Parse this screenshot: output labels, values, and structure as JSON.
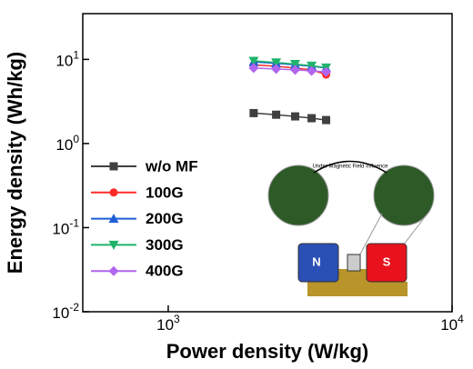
{
  "chart_data": {
    "type": "line",
    "log_x": true,
    "log_y": true,
    "x_label": "Power density (W/kg)",
    "y_label": "Energy density (Wh/kg)",
    "x": [
      2000,
      2400,
      2800,
      3200,
      3600
    ],
    "series": [
      {
        "name": "w/o MF",
        "color": "#404040",
        "marker": "square",
        "values": [
          2.3,
          2.2,
          2.1,
          2.0,
          1.9
        ]
      },
      {
        "name": "100G",
        "color": "#ff2b2b",
        "marker": "circle",
        "values": [
          8.6,
          8.3,
          7.9,
          7.5,
          6.6
        ]
      },
      {
        "name": "200G",
        "color": "#1f5fd6",
        "marker": "triangle-up",
        "values": [
          9.3,
          9.0,
          8.6,
          8.3,
          7.9
        ]
      },
      {
        "name": "300G",
        "color": "#1fb36b",
        "marker": "triangle-down",
        "values": [
          9.6,
          9.2,
          8.8,
          8.4,
          8.0
        ]
      },
      {
        "name": "400G",
        "color": "#b066ee",
        "marker": "diamond",
        "values": [
          7.9,
          7.7,
          7.5,
          7.3,
          7.1
        ]
      }
    ],
    "xlim": [
      500,
      10000
    ],
    "ylim": [
      0.01,
      35
    ],
    "xticks": [
      {
        "value": 1000,
        "label": "10^3"
      },
      {
        "value": 10000,
        "label": "10^4"
      }
    ],
    "yticks": [
      {
        "value": 0.01,
        "label": "10^-2"
      },
      {
        "value": 0.1,
        "label": "10^-1"
      },
      {
        "value": 1,
        "label": "10^0"
      },
      {
        "value": 10,
        "label": "10^1"
      }
    ],
    "legend": "lower left",
    "annotations": [
      "Under Magnetic Field Influence",
      "N",
      "S"
    ]
  }
}
